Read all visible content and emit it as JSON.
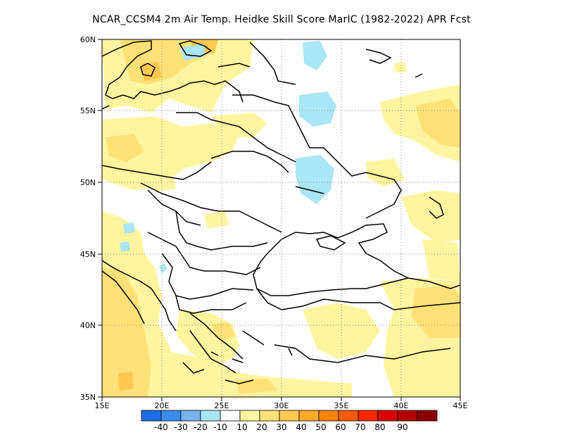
{
  "title": "NCAR_CCSM4  2m Air Temp. Heidke Skill Score MarIC (1982-2022) APR Fcst",
  "map": {
    "lon_range": [
      15,
      45
    ],
    "lat_range": [
      35,
      60
    ],
    "lon_ticks": [
      "15E",
      "20E",
      "25E",
      "30E",
      "35E",
      "40E",
      "45E"
    ],
    "lat_ticks": [
      "35N",
      "40N",
      "45N",
      "50N",
      "55N",
      "60N"
    ],
    "grid": "dotted"
  },
  "colorbar": {
    "colors": [
      "#1e6ee6",
      "#3c8cf0",
      "#78b4f5",
      "#aae6f5",
      "#ffffff",
      "#fff5a0",
      "#ffe178",
      "#ffc850",
      "#ffaa28",
      "#ff8200",
      "#ff5a00",
      "#ff2800",
      "#dc0000",
      "#b40000",
      "#8c0000"
    ],
    "labels": [
      "-40",
      "-30",
      "-20",
      "-10",
      "10",
      "20",
      "30",
      "40",
      "50",
      "60",
      "70",
      "80",
      "90"
    ]
  }
}
